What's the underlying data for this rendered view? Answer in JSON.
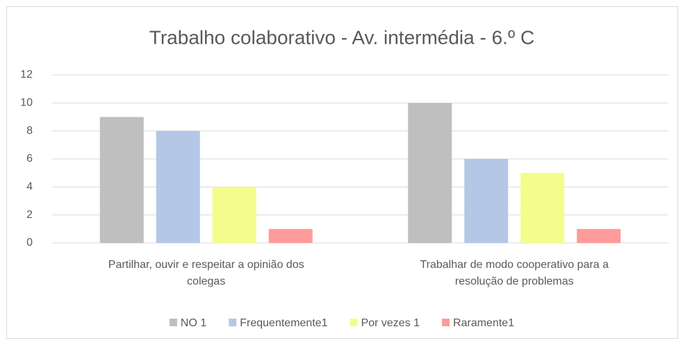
{
  "chart_data": {
    "type": "bar",
    "title": "Trabalho colaborativo - Av. intermédia - 6.º C",
    "categories": [
      "Partilhar, ouvir e respeitar a opinião dos colegas",
      "Trabalhar de modo cooperativo para a resolução de problemas"
    ],
    "series": [
      {
        "name": "NO 1",
        "color": "#bfbfbf",
        "values": [
          9,
          10
        ]
      },
      {
        "name": "Frequentemente1",
        "color": "#b4c7e7",
        "values": [
          8,
          6
        ]
      },
      {
        "name": "Por vezes 1",
        "color": "#f4fc8c",
        "values": [
          4,
          5
        ]
      },
      {
        "name": "Raramente1",
        "color": "#ff9b9b",
        "values": [
          1,
          1
        ]
      }
    ],
    "ylim": [
      0,
      12
    ],
    "yticks": [
      0,
      2,
      4,
      6,
      8,
      10,
      12
    ],
    "grid": true,
    "legend": "bottom"
  }
}
